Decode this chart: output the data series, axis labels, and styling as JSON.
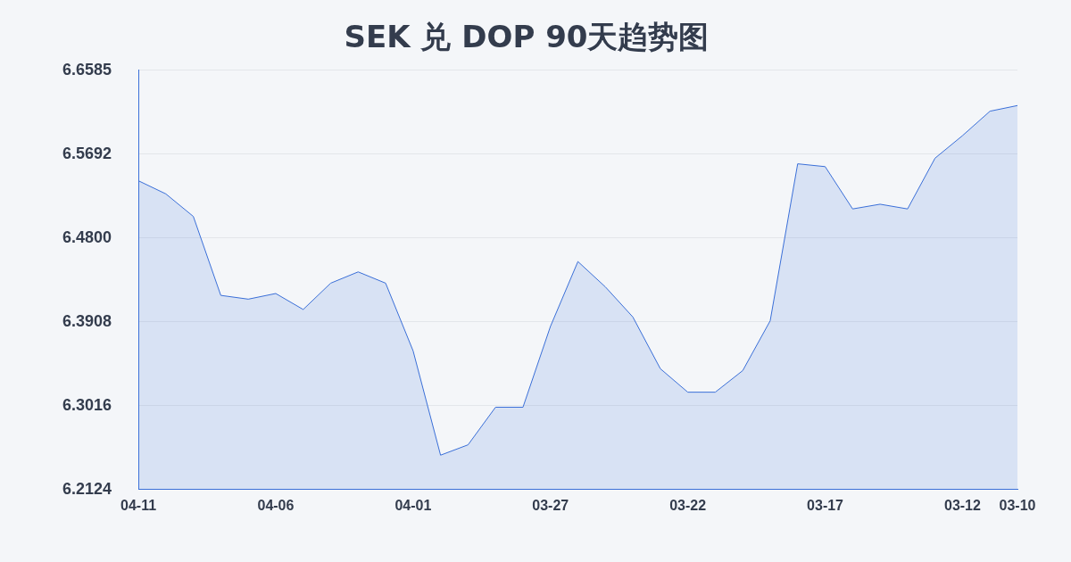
{
  "chart_data": {
    "type": "area",
    "title": "SEK 兑 DOP 90天趋势图",
    "categories": [
      "04-11",
      null,
      null,
      null,
      null,
      "04-06",
      null,
      null,
      null,
      null,
      "04-01",
      null,
      null,
      null,
      null,
      "03-27",
      null,
      null,
      null,
      null,
      "03-22",
      null,
      null,
      null,
      null,
      "03-17",
      null,
      null,
      null,
      null,
      "03-12",
      null,
      "03-10"
    ],
    "series": [
      {
        "color": "#3a6fd8",
        "values": [
          6.541,
          6.527,
          6.503,
          6.419,
          6.415,
          6.421,
          6.404,
          6.432,
          6.444,
          6.432,
          6.36,
          6.249,
          6.26,
          6.3,
          6.3,
          6.386,
          6.455,
          6.428,
          6.396,
          6.341,
          6.316,
          6.316,
          6.339,
          6.392,
          6.559,
          6.556,
          6.511,
          6.516,
          6.511,
          6.565,
          6.589,
          6.615,
          6.621
        ]
      }
    ],
    "ylim": [
      6.2124,
      6.6585
    ],
    "yticks": [
      6.2124,
      6.3016,
      6.3908,
      {
        "value": 6.48,
        "label": "6.4800"
      },
      6.5692,
      6.6585
    ],
    "grid": "y",
    "legend": false,
    "marker": "none",
    "line_style": "solid"
  }
}
